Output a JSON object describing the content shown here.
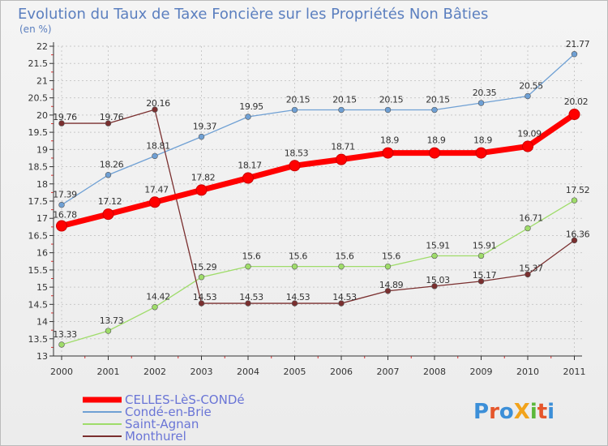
{
  "title": "Evolution du Taux de Taxe Foncière sur les Propriétés Non Bâties",
  "subtitle": "(en %)",
  "brand": "ProXiti",
  "colors": {
    "title": "#5b7fbf",
    "grid": "#c9c9c9",
    "axis": "#333333",
    "legend_text": "#6a75d6"
  },
  "chart_data": {
    "type": "line",
    "categories": [
      "2000",
      "2001",
      "2002",
      "2003",
      "2004",
      "2005",
      "2006",
      "2007",
      "2008",
      "2009",
      "2010",
      "2011"
    ],
    "ylim": [
      13,
      22
    ],
    "yticks": [
      "13",
      "13.5",
      "14",
      "14.5",
      "15",
      "15.5",
      "16",
      "16.5",
      "17",
      "17.5",
      "18",
      "18.5",
      "19",
      "19.5",
      "20",
      "20.5",
      "21",
      "21.5",
      "22"
    ],
    "grid": true,
    "legend_position": "bottom-left",
    "series": [
      {
        "name": "CELLES-LèS-CONDé",
        "color": "#ff0000",
        "thick": true,
        "values": [
          16.78,
          17.12,
          17.47,
          17.82,
          18.17,
          18.53,
          18.71,
          18.9,
          18.9,
          18.9,
          19.09,
          20.02
        ],
        "labels": [
          "16.78",
          "17.12",
          "17.47",
          "17.82",
          "18.17",
          "18.53",
          "18.71",
          "18.9",
          "18.9",
          "18.9",
          "19.09",
          "20.02"
        ]
      },
      {
        "name": "Condé-en-Brie",
        "color": "#6fa0d4",
        "thick": false,
        "values": [
          17.39,
          18.26,
          18.81,
          19.37,
          19.95,
          20.15,
          20.15,
          20.15,
          20.15,
          20.35,
          20.55,
          21.77
        ],
        "labels": [
          "17.39",
          "18.26",
          "18.81",
          "19.37",
          "19.95",
          "20.15",
          "20.15",
          "20.15",
          "20.15",
          "20.35",
          "20.55",
          "21.77"
        ]
      },
      {
        "name": "Saint-Agnan",
        "color": "#9fdc6a",
        "thick": false,
        "values": [
          13.33,
          13.73,
          14.42,
          15.29,
          15.6,
          15.6,
          15.6,
          15.6,
          15.91,
          15.91,
          16.71,
          17.52
        ],
        "labels": [
          "13.33",
          "13.73",
          "14.42",
          "15.29",
          "15.6",
          "15.6",
          "15.6",
          "15.6",
          "15.91",
          "15.91",
          "16.71",
          "17.52"
        ]
      },
      {
        "name": "Monthurel",
        "color": "#7a2f2f",
        "thick": false,
        "values": [
          19.76,
          19.76,
          20.16,
          14.53,
          14.53,
          14.53,
          14.53,
          14.89,
          15.03,
          15.17,
          15.37,
          16.36
        ],
        "labels": [
          "19.76",
          "19.76",
          "20.16",
          "14.53",
          "14.53",
          "14.53",
          "14.53",
          "14.89",
          "15.03",
          "15.17",
          "15.37",
          "16.36"
        ]
      }
    ]
  }
}
